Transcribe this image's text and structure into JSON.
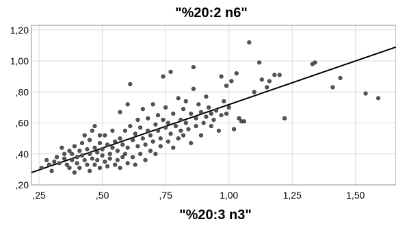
{
  "chart_data": {
    "type": "scatter",
    "title": "\"%20:2 n6\"",
    "xlabel": "\"%20:3 n3\"",
    "ylabel": "",
    "xlim": [
      0.22,
      1.66
    ],
    "ylim": [
      0.2,
      1.23
    ],
    "x_ticks": [
      0.25,
      0.5,
      0.75,
      1.0,
      1.25,
      1.5
    ],
    "x_tick_labels": [
      ",25",
      ",50",
      ",75",
      "1,00",
      "1,25",
      "1,50"
    ],
    "y_ticks": [
      0.2,
      0.4,
      0.6,
      0.8,
      1.0,
      1.2
    ],
    "y_tick_labels": [
      ",20",
      ",40",
      ",60",
      ",80",
      "1,00",
      "1,20"
    ],
    "grid": true,
    "fit_line": {
      "x": [
        0.22,
        1.66
      ],
      "y": [
        0.28,
        1.09
      ]
    },
    "series": [
      {
        "color": "#555555",
        "points": [
          [
            0.26,
            0.31
          ],
          [
            0.28,
            0.36
          ],
          [
            0.29,
            0.33
          ],
          [
            0.3,
            0.29
          ],
          [
            0.31,
            0.35
          ],
          [
            0.32,
            0.38
          ],
          [
            0.33,
            0.34
          ],
          [
            0.34,
            0.44
          ],
          [
            0.35,
            0.4
          ],
          [
            0.35,
            0.37
          ],
          [
            0.36,
            0.33
          ],
          [
            0.37,
            0.42
          ],
          [
            0.37,
            0.31
          ],
          [
            0.38,
            0.36
          ],
          [
            0.38,
            0.4
          ],
          [
            0.39,
            0.45
          ],
          [
            0.39,
            0.28
          ],
          [
            0.4,
            0.38
          ],
          [
            0.4,
            0.34
          ],
          [
            0.41,
            0.42
          ],
          [
            0.41,
            0.31
          ],
          [
            0.42,
            0.47
          ],
          [
            0.42,
            0.39
          ],
          [
            0.43,
            0.52
          ],
          [
            0.43,
            0.36
          ],
          [
            0.44,
            0.43
          ],
          [
            0.44,
            0.33
          ],
          [
            0.45,
            0.49
          ],
          [
            0.45,
            0.4
          ],
          [
            0.45,
            0.29
          ],
          [
            0.46,
            0.37
          ],
          [
            0.46,
            0.55
          ],
          [
            0.47,
            0.58
          ],
          [
            0.47,
            0.44
          ],
          [
            0.47,
            0.33
          ],
          [
            0.48,
            0.41
          ],
          [
            0.48,
            0.36
          ],
          [
            0.49,
            0.52
          ],
          [
            0.49,
            0.47
          ],
          [
            0.49,
            0.31
          ],
          [
            0.5,
            0.39
          ],
          [
            0.5,
            0.43
          ],
          [
            0.51,
            0.35
          ],
          [
            0.51,
            0.52
          ],
          [
            0.52,
            0.46
          ],
          [
            0.52,
            0.32
          ],
          [
            0.53,
            0.4
          ],
          [
            0.53,
            0.37
          ],
          [
            0.54,
            0.55
          ],
          [
            0.54,
            0.44
          ],
          [
            0.55,
            0.33
          ],
          [
            0.55,
            0.48
          ],
          [
            0.56,
            0.36
          ],
          [
            0.56,
            0.42
          ],
          [
            0.57,
            0.67
          ],
          [
            0.57,
            0.5
          ],
          [
            0.57,
            0.31
          ],
          [
            0.58,
            0.46
          ],
          [
            0.58,
            0.38
          ],
          [
            0.59,
            0.55
          ],
          [
            0.59,
            0.4
          ],
          [
            0.6,
            0.72
          ],
          [
            0.6,
            0.44
          ],
          [
            0.6,
            0.34
          ],
          [
            0.61,
            0.58
          ],
          [
            0.61,
            0.85
          ],
          [
            0.62,
            0.49
          ],
          [
            0.62,
            0.38
          ],
          [
            0.63,
            0.53
          ],
          [
            0.63,
            0.33
          ],
          [
            0.64,
            0.62
          ],
          [
            0.64,
            0.45
          ],
          [
            0.65,
            0.4
          ],
          [
            0.65,
            0.57
          ],
          [
            0.66,
            0.69
          ],
          [
            0.66,
            0.5
          ],
          [
            0.67,
            0.36
          ],
          [
            0.67,
            0.46
          ],
          [
            0.68,
            0.55
          ],
          [
            0.68,
            0.63
          ],
          [
            0.69,
            0.42
          ],
          [
            0.69,
            0.52
          ],
          [
            0.7,
            0.72
          ],
          [
            0.7,
            0.48
          ],
          [
            0.71,
            0.59
          ],
          [
            0.71,
            0.4
          ],
          [
            0.72,
            0.55
          ],
          [
            0.72,
            0.65
          ],
          [
            0.73,
            0.5
          ],
          [
            0.73,
            0.45
          ],
          [
            0.74,
            0.9
          ],
          [
            0.74,
            0.62
          ],
          [
            0.75,
            0.57
          ],
          [
            0.75,
            0.7
          ],
          [
            0.76,
            0.48
          ],
          [
            0.76,
            0.6
          ],
          [
            0.77,
            0.93
          ],
          [
            0.77,
            0.53
          ],
          [
            0.78,
            0.66
          ],
          [
            0.78,
            0.44
          ],
          [
            0.79,
            0.58
          ],
          [
            0.8,
            0.76
          ],
          [
            0.8,
            0.5
          ],
          [
            0.81,
            0.62
          ],
          [
            0.81,
            0.55
          ],
          [
            0.82,
            0.69
          ],
          [
            0.82,
            0.52
          ],
          [
            0.83,
            0.6
          ],
          [
            0.83,
            0.74
          ],
          [
            0.84,
            0.56
          ],
          [
            0.85,
            0.66
          ],
          [
            0.85,
            0.47
          ],
          [
            0.86,
            0.96
          ],
          [
            0.86,
            0.82
          ],
          [
            0.87,
            0.63
          ],
          [
            0.87,
            0.58
          ],
          [
            0.88,
            0.72
          ],
          [
            0.89,
            0.52
          ],
          [
            0.89,
            0.67
          ],
          [
            0.9,
            0.6
          ],
          [
            0.91,
            0.77
          ],
          [
            0.91,
            0.64
          ],
          [
            0.92,
            0.7
          ],
          [
            0.93,
            0.58
          ],
          [
            0.93,
            0.66
          ],
          [
            0.94,
            0.62
          ],
          [
            0.95,
            0.68
          ],
          [
            0.96,
            0.55
          ],
          [
            0.97,
            0.9
          ],
          [
            0.97,
            0.65
          ],
          [
            0.98,
            0.74
          ],
          [
            0.99,
            0.84
          ],
          [
            0.99,
            0.66
          ],
          [
            1.0,
            0.7
          ],
          [
            1.01,
            0.87
          ],
          [
            1.02,
            0.56
          ],
          [
            1.03,
            0.92
          ],
          [
            1.04,
            0.63
          ],
          [
            1.05,
            0.61
          ],
          [
            1.06,
            0.61
          ],
          [
            1.08,
            1.12
          ],
          [
            1.1,
            0.8
          ],
          [
            1.12,
            0.99
          ],
          [
            1.13,
            0.88
          ],
          [
            1.15,
            0.83
          ],
          [
            1.16,
            0.87
          ],
          [
            1.18,
            0.91
          ],
          [
            1.2,
            0.91
          ],
          [
            1.22,
            0.63
          ],
          [
            1.33,
            0.98
          ],
          [
            1.34,
            0.99
          ],
          [
            1.41,
            0.83
          ],
          [
            1.44,
            0.89
          ],
          [
            1.54,
            0.79
          ],
          [
            1.59,
            0.76
          ]
        ]
      }
    ]
  }
}
